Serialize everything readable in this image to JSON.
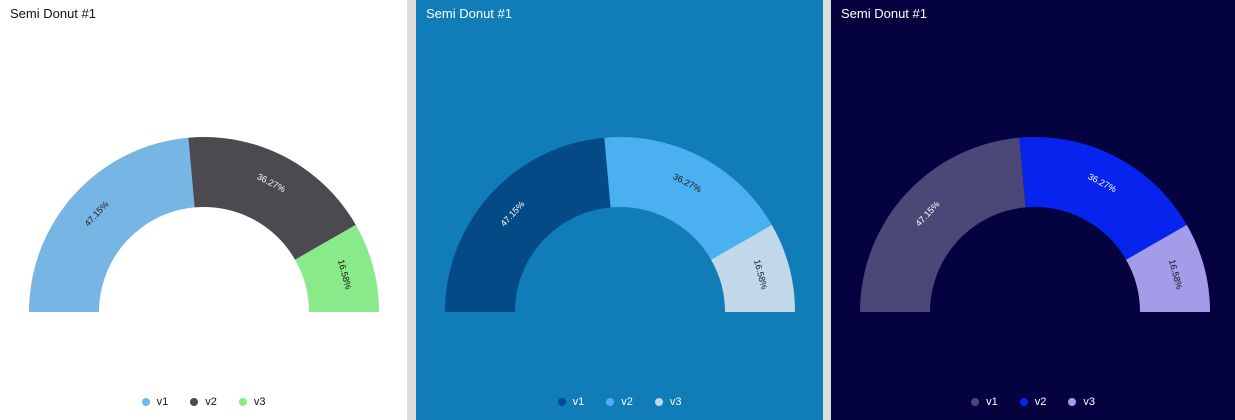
{
  "chart_data": [
    {
      "type": "pie",
      "variant": "semi-donut",
      "title": "Semi Donut #1",
      "categories": [
        "v1",
        "v2",
        "v3"
      ],
      "values": [
        47.15,
        36.27,
        16.58
      ],
      "labels": [
        "47.15%",
        "36.27%",
        "16.58%"
      ],
      "legend": "bottom",
      "colors": [
        "#77b5e5",
        "#4b4a50",
        "#88ea88"
      ],
      "label_colors": [
        "#222222",
        "#ffffff",
        "#111111"
      ],
      "theme": {
        "background": "#ffffff",
        "text": "#111111"
      }
    },
    {
      "type": "pie",
      "variant": "semi-donut",
      "title": "Semi Donut #1",
      "categories": [
        "v1",
        "v2",
        "v3"
      ],
      "values": [
        47.15,
        36.27,
        16.58
      ],
      "labels": [
        "47.15%",
        "36.27%",
        "16.58%"
      ],
      "legend": "bottom",
      "colors": [
        "#044a86",
        "#4bb0ef",
        "#c0d8ea"
      ],
      "label_colors": [
        "#ffffff",
        "#1a1a1a",
        "#1a1a1a"
      ],
      "theme": {
        "background": "#117db8",
        "text": "#ffffff"
      }
    },
    {
      "type": "pie",
      "variant": "semi-donut",
      "title": "Semi Donut #1",
      "categories": [
        "v1",
        "v2",
        "v3"
      ],
      "values": [
        47.15,
        36.27,
        16.58
      ],
      "labels": [
        "47.15%",
        "36.27%",
        "16.58%"
      ],
      "legend": "bottom",
      "colors": [
        "#4a4876",
        "#0624ee",
        "#a39ce8"
      ],
      "label_colors": [
        "#ffffff",
        "#ffffff",
        "#111111"
      ],
      "theme": {
        "background": "#040340",
        "text": "#ffffff"
      }
    }
  ]
}
